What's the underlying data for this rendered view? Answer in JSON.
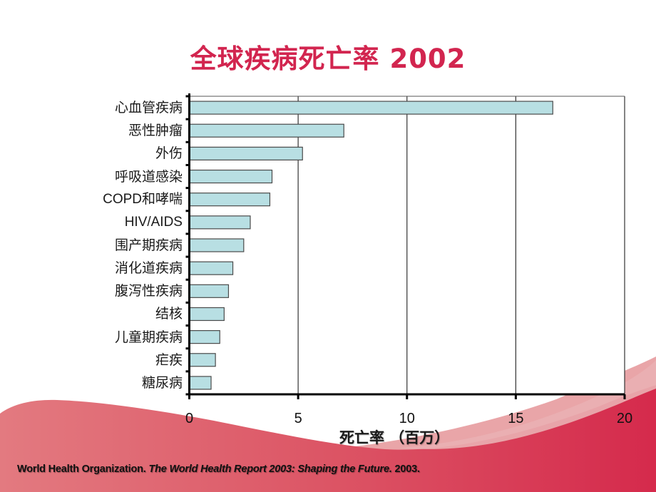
{
  "slide": {
    "title": "全球疾病死亡率 2002",
    "footer": {
      "org": "World Health Organization.",
      "work": "The World Health Report 2003: Shaping the Future.",
      "year": "2003."
    },
    "colors": {
      "title": "#d2254f",
      "bar_fill": "#b8dfe3",
      "bar_stroke": "#4a4a4a",
      "axis": "#000000",
      "grid": "#333333",
      "wave_dark": "#d6304f",
      "wave_light": "#e8a3a6"
    }
  },
  "chart_data": {
    "type": "bar",
    "orientation": "horizontal",
    "title": "全球疾病死亡率 2002",
    "xlabel": "死亡率 （百万）",
    "ylabel": "",
    "xlim": [
      0,
      20
    ],
    "xticks": [
      0,
      5,
      10,
      15,
      20
    ],
    "xtick_labels": [
      "0",
      "5",
      "10",
      "15",
      "20"
    ],
    "grid": "vertical lines at major x ticks",
    "legend": null,
    "categories": [
      "心血管疾病",
      "恶性肿瘤",
      "外伤",
      "呼吸道感染",
      "COPD和哮喘",
      "HIV/AIDS",
      "围产期疾病",
      "消化道疾病",
      "腹泻性疾病",
      "结核",
      "儿童期疾病",
      "疟疾",
      "糖尿病"
    ],
    "values": [
      16.7,
      7.1,
      5.2,
      3.8,
      3.7,
      2.8,
      2.5,
      2.0,
      1.8,
      1.6,
      1.4,
      1.2,
      1.0
    ]
  }
}
